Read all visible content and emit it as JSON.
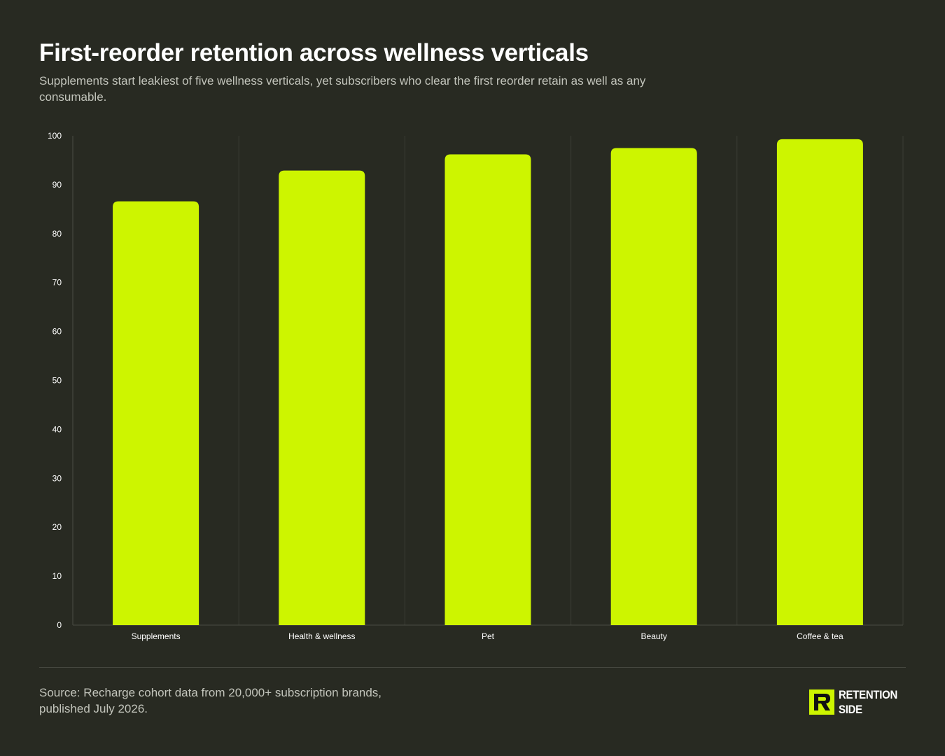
{
  "header": {
    "title": "First-reorder retention across wellness verticals",
    "subtitle": "Supplements start leakiest of five wellness verticals, yet subscribers who clear the first reorder retain as well as any consumable."
  },
  "chart_data": {
    "type": "bar",
    "categories": [
      "Supplements",
      "Health & wellness",
      "Pet",
      "Beauty",
      "Coffee & tea"
    ],
    "values": [
      86.6,
      92.9,
      96.2,
      97.5,
      99.3
    ],
    "ylim": [
      0,
      100
    ],
    "yticks": [
      0,
      10,
      20,
      30,
      40,
      50,
      60,
      70,
      80,
      90,
      100
    ],
    "xlabel": "",
    "ylabel": "",
    "grid": "vertical category separators",
    "bar_color": "#cdf500"
  },
  "footer": {
    "source": "Source: Recharge cohort data from 20,000+ subscription brands, published July 2026.",
    "brand_line1": "RETENTION",
    "brand_line2": "SIDE",
    "brand_mark": "r-logo-icon"
  },
  "colors": {
    "background": "#282a22",
    "accent": "#cdf500",
    "muted_text": "#c2c4bb",
    "axis": "#45473f"
  }
}
